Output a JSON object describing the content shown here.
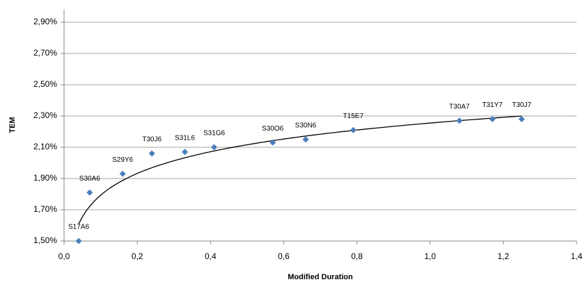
{
  "chart_data": {
    "type": "scatter",
    "x_label": "Modified Duration",
    "y_label": "TEM",
    "labels": [
      "S17A6",
      "S30A6",
      "S29Y6",
      "T30J6",
      "S31L6",
      "S31G6",
      "S30O6",
      "S30N6",
      "T15E7",
      "T30A7",
      "T31Y7",
      "T30J7"
    ],
    "x": [
      0.04,
      0.07,
      0.16,
      0.24,
      0.33,
      0.41,
      0.57,
      0.66,
      0.79,
      1.08,
      1.17,
      1.25
    ],
    "values": [
      1.5,
      1.81,
      1.93,
      2.06,
      2.07,
      2.1,
      2.13,
      2.15,
      2.21,
      2.27,
      2.28,
      2.28
    ],
    "color": "#4a7ebb",
    "trendline": {
      "type": "logarithmic",
      "a": 2.255,
      "b": 0.2005,
      "x_range": [
        0.04,
        1.25
      ],
      "color": "#000000"
    },
    "xlim": [
      0,
      1.4
    ],
    "ylim": [
      1.5,
      2.98
    ],
    "xticks": [
      {
        "value": 0,
        "label": "0,0"
      },
      {
        "value": 0.2,
        "label": "0,2"
      },
      {
        "value": 0.4,
        "label": "0,4"
      },
      {
        "value": 0.6,
        "label": "0,6"
      },
      {
        "value": 0.8,
        "label": "0,8"
      },
      {
        "value": 1.0,
        "label": "1,0"
      },
      {
        "value": 1.2,
        "label": "1,2"
      },
      {
        "value": 1.4,
        "label": "1,4"
      }
    ],
    "yticks": [
      {
        "value": 1.5,
        "label": "1,50%"
      },
      {
        "value": 1.7,
        "label": "1,70%"
      },
      {
        "value": 1.9,
        "label": "1,90%"
      },
      {
        "value": 2.1,
        "label": "2,10%"
      },
      {
        "value": 2.3,
        "label": "2,30%"
      },
      {
        "value": 2.5,
        "label": "2,50%"
      },
      {
        "value": 2.7,
        "label": "2,70%"
      },
      {
        "value": 2.9,
        "label": "2,90%"
      }
    ],
    "grid": true
  }
}
